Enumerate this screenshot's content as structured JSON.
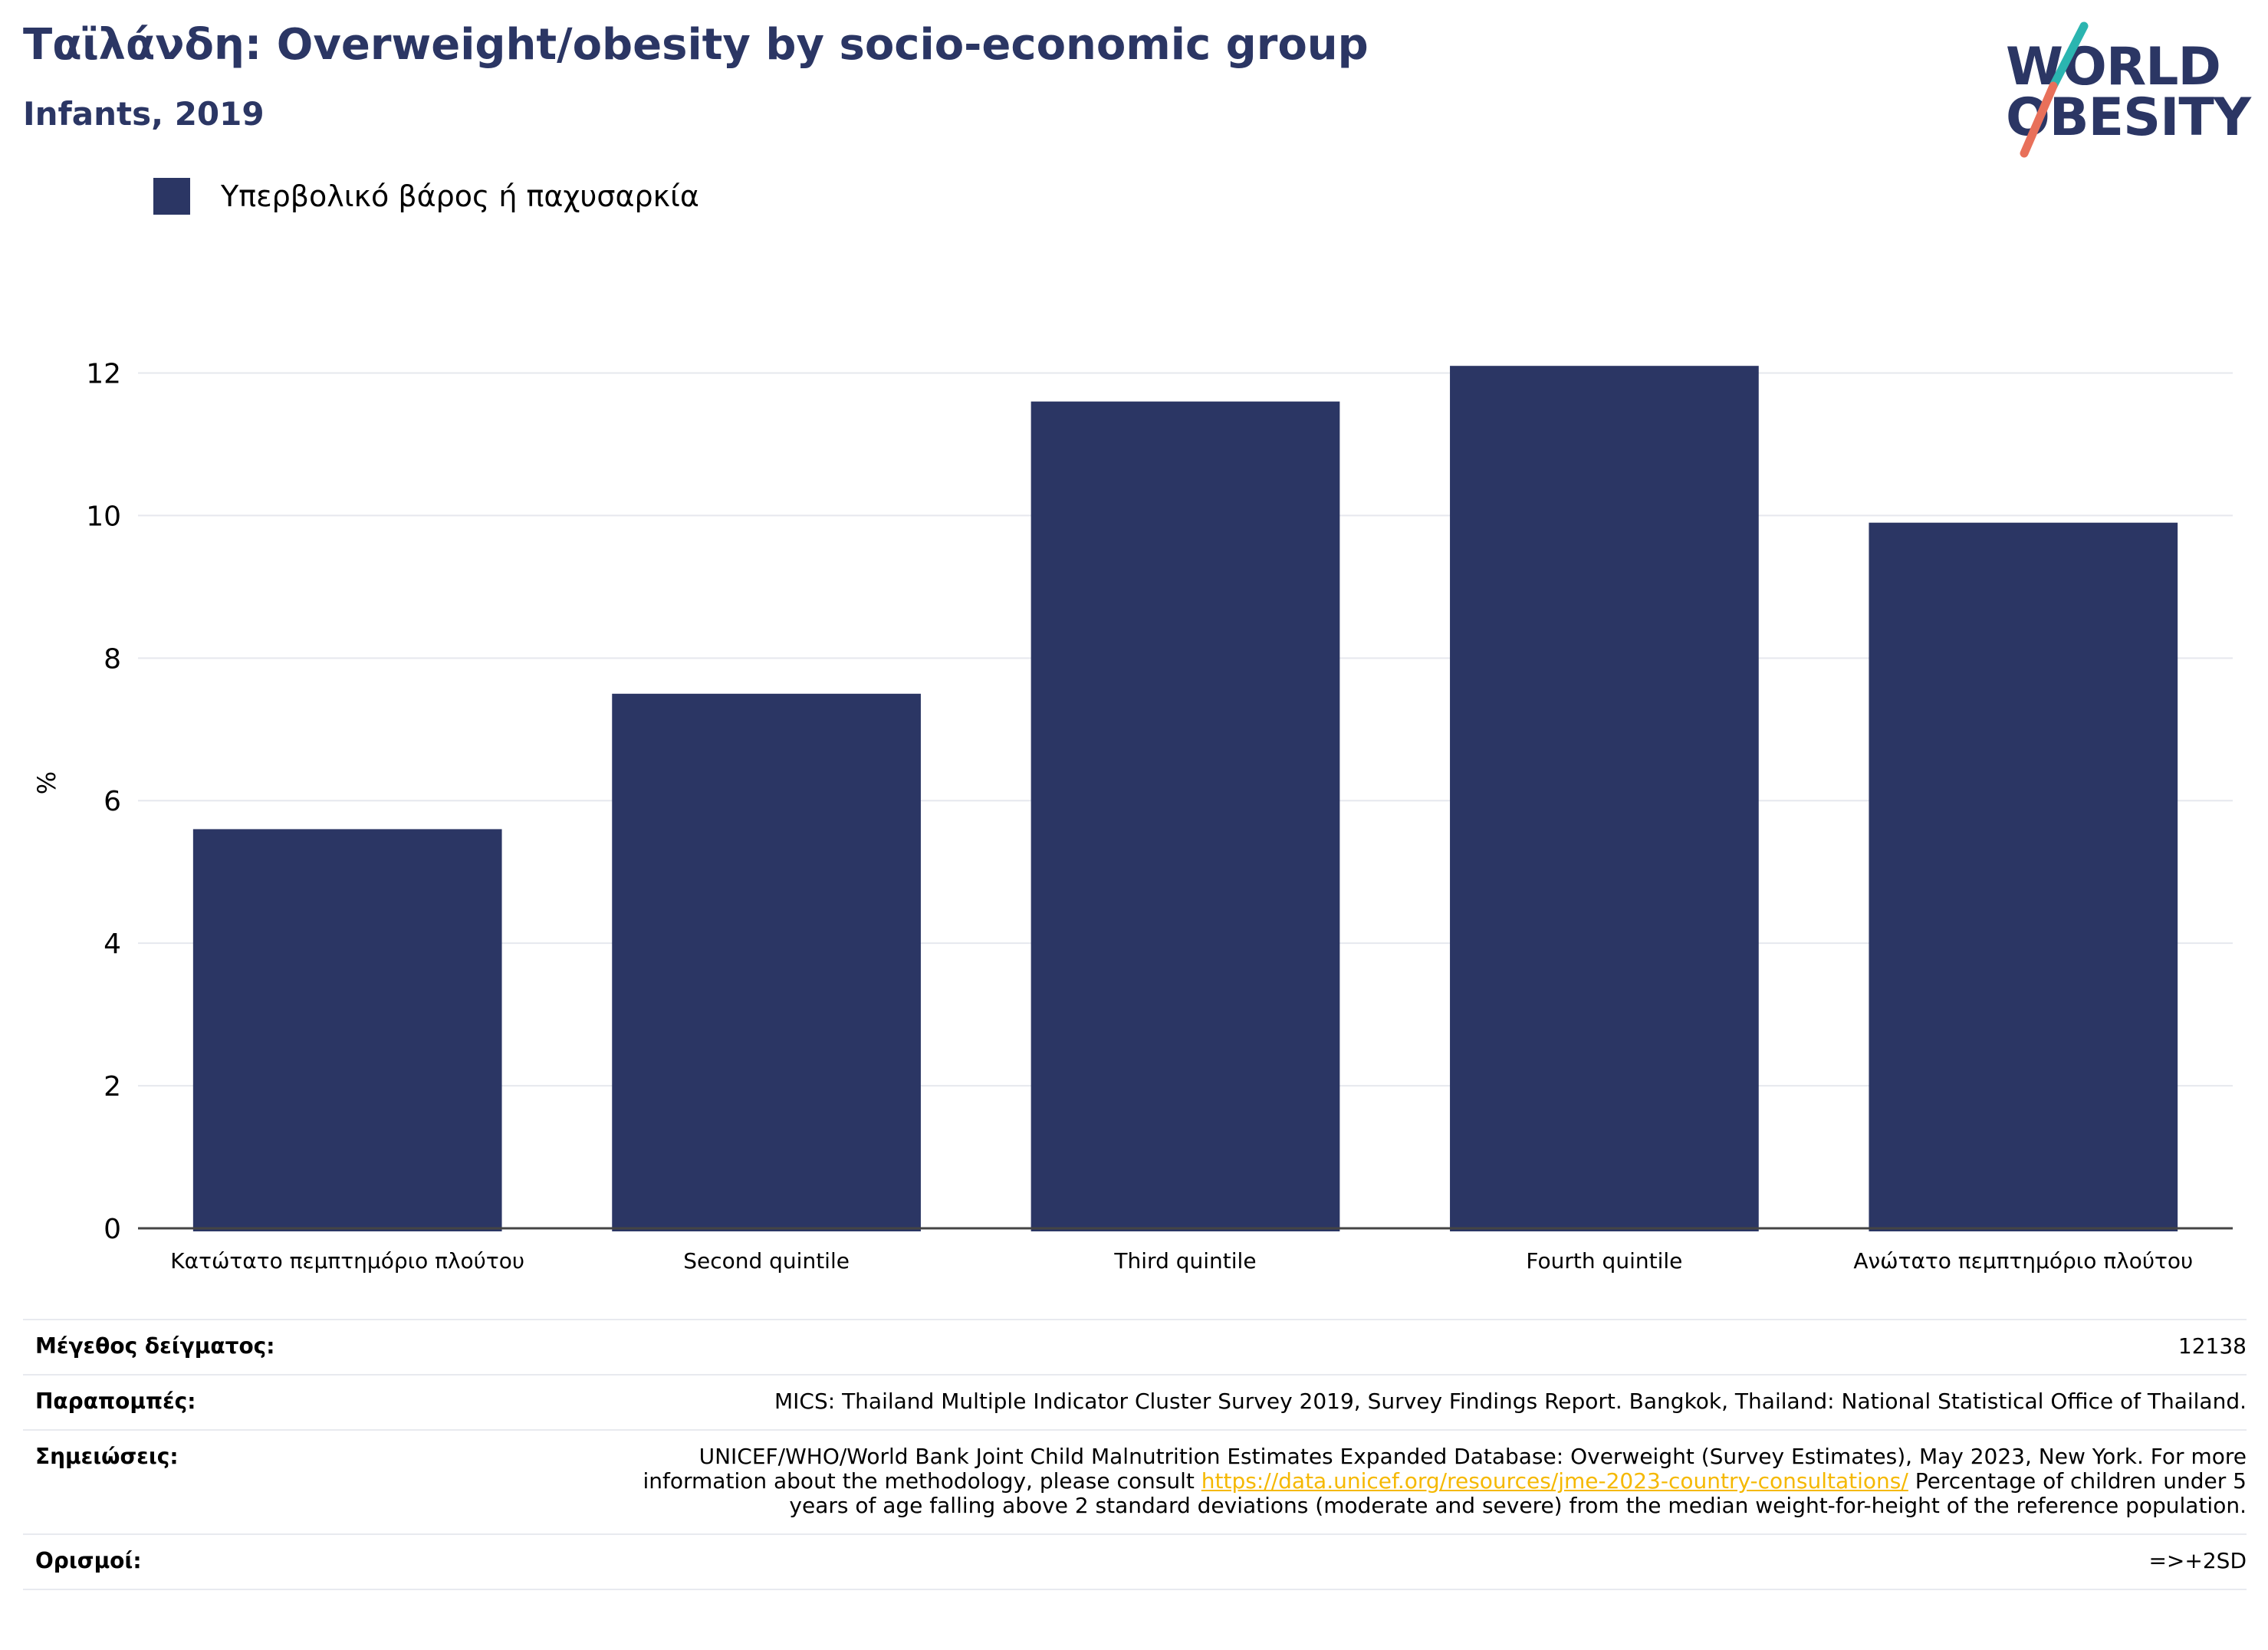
{
  "header": {
    "title": "Ταϊλάνδη: Overweight/obesity by socio-economic group",
    "subtitle": "Infants, 2019"
  },
  "logo": {
    "line1": "WORLD",
    "line2": "OBESITY"
  },
  "legend": {
    "label": "Υπερβολικό βάρος ή παχυσαρκία",
    "color": "#2b3664"
  },
  "chart_data": {
    "type": "bar",
    "categories": [
      "Κατώτατο πεμπτημόριο πλούτου",
      "Second quintile",
      "Third quintile",
      "Fourth quintile",
      "Ανώτατο πεμπτημόριο πλούτου"
    ],
    "series": [
      {
        "name": "Υπερβολικό βάρος ή παχυσαρκία",
        "values": [
          5.6,
          7.5,
          11.6,
          12.1,
          9.9
        ],
        "color": "#2b3664"
      }
    ],
    "ylabel": "%",
    "ylim": [
      0,
      12.5
    ],
    "yticks": [
      0,
      2,
      4,
      6,
      8,
      10,
      12
    ],
    "grid": true,
    "legend_position": "top-left"
  },
  "info": {
    "sample": {
      "key": "Μέγεθος δείγματος:",
      "value": "12138"
    },
    "refs": {
      "key": "Παραπομπές:",
      "value": "MICS: Thailand Multiple Indicator Cluster Survey 2019, Survey Findings Report. Bangkok, Thailand: National Statistical Office of Thailand."
    },
    "notes": {
      "key": "Σημειώσεις:",
      "text_before": "UNICEF/WHO/World Bank Joint Child Malnutrition Estimates Expanded Database: Overweight (Survey Estimates), May 2023, New York. For more information about the methodology, please consult ",
      "link": "https://data.unicef.org/resources/jme-2023-country-consultations/",
      "text_after": " Percentage of children under 5 years of age falling above 2 standard deviations (moderate and severe) from the median weight-for-height of the reference population."
    },
    "defs": {
      "key": "Ορισμοί:",
      "value": "=>+2SD"
    }
  }
}
